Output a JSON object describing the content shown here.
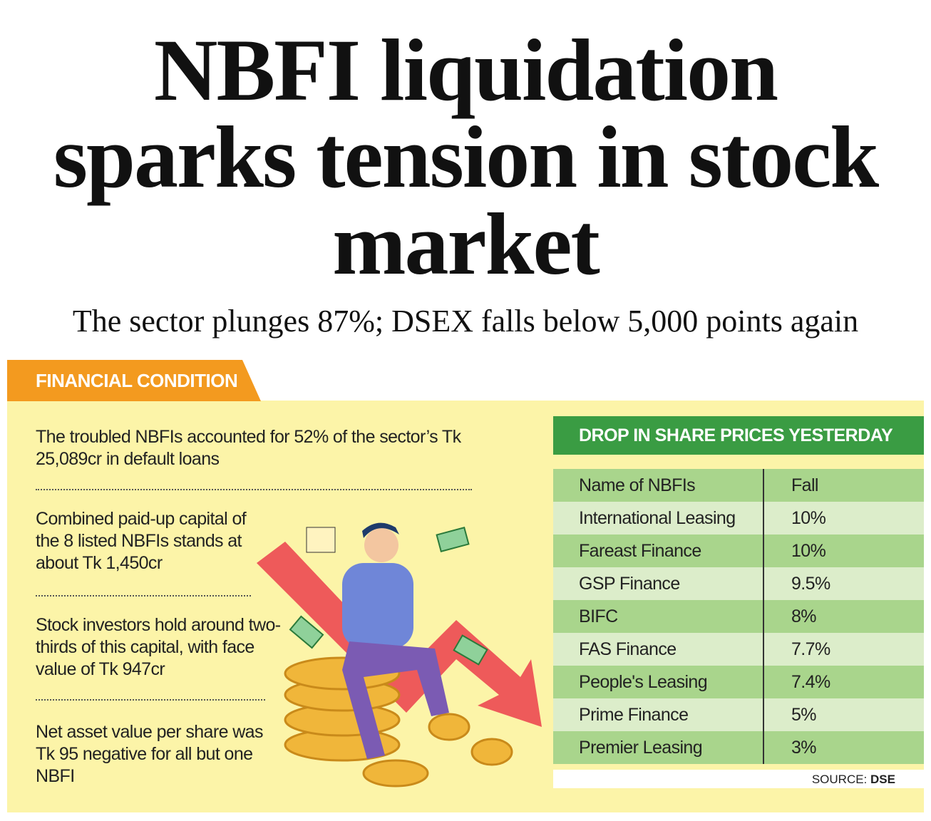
{
  "header": {
    "title": "NBFI liquidation sparks tension in stock market",
    "subtitle": "The sector plunges 87%; DSEX falls below 5,000 points again"
  },
  "section": {
    "label": "FINANCIAL CONDITION",
    "facts": [
      "The troubled NBFIs accounted for 52% of the sector’s Tk 25,089cr in default loans",
      "Combined paid-up capital of the 8 listed NBFIs stands at about Tk 1,450cr",
      "Stock investors hold around two-thirds of this capital, with face value of Tk 947cr",
      "Net asset value per share was Tk 95 negative for all but one NBFI"
    ]
  },
  "table": {
    "title": "DROP IN SHARE PRICES YESTERDAY",
    "columns": [
      "Name of NBFIs",
      "Fall"
    ],
    "rows": [
      [
        "International Leasing",
        "10%"
      ],
      [
        "Fareast Finance",
        "10%"
      ],
      [
        "GSP Finance",
        "9.5%"
      ],
      [
        "BIFC",
        "8%"
      ],
      [
        "FAS Finance",
        "7.7%"
      ],
      [
        "People's Leasing",
        "7.4%"
      ],
      [
        "Prime Finance",
        "5%"
      ],
      [
        "Premier Leasing",
        "3%"
      ]
    ],
    "source_label": "SOURCE:",
    "source": "DSE"
  }
}
